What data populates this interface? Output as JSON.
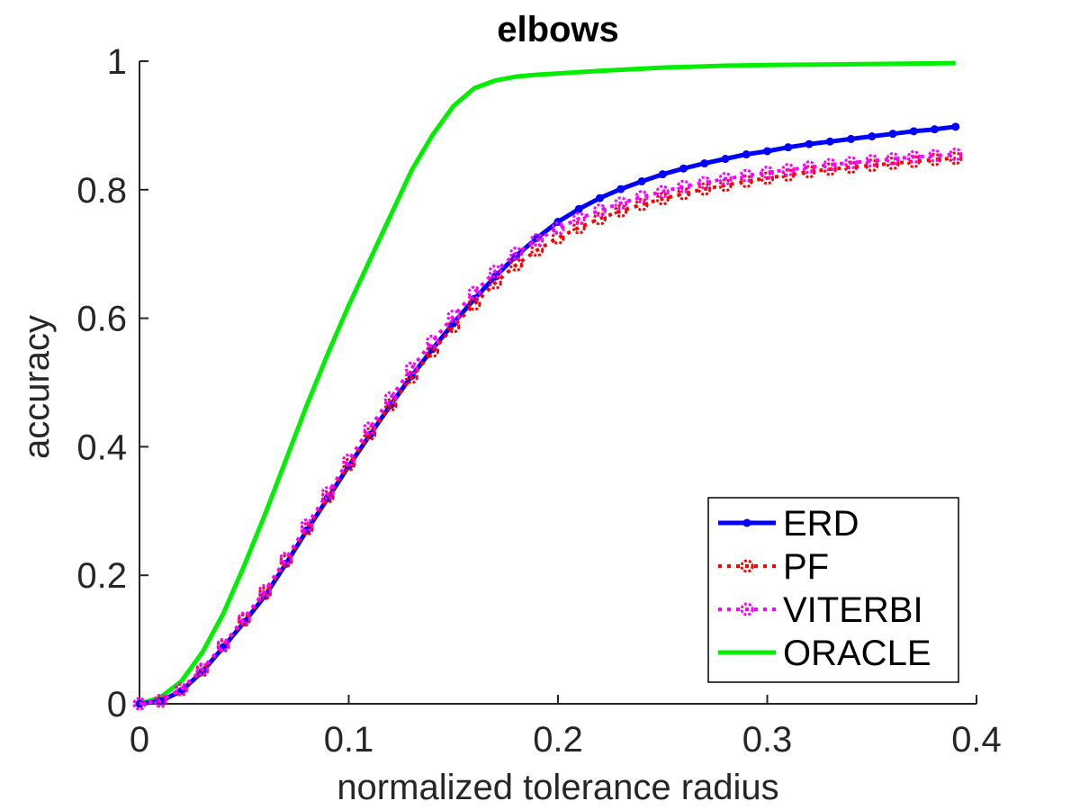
{
  "chart_data": {
    "type": "line",
    "title": "elbows",
    "xlabel": "normalized tolerance radius",
    "ylabel": "accuracy",
    "xlim": [
      0,
      0.4
    ],
    "ylim": [
      0,
      1
    ],
    "xticks": [
      0,
      0.1,
      0.2,
      0.3,
      0.4
    ],
    "xtick_labels": [
      "0",
      "0.1",
      "0.2",
      "0.3",
      "0.4"
    ],
    "yticks": [
      0,
      0.2,
      0.4,
      0.6,
      0.8,
      1
    ],
    "ytick_labels": [
      "0",
      "0.2",
      "0.4",
      "0.6",
      "0.8",
      "1"
    ],
    "grid": false,
    "legend_position": "bottom-right",
    "series": [
      {
        "name": "ERD",
        "color": "#0000ff",
        "line_style": "solid",
        "marker": "dot",
        "x": [
          0,
          0.01,
          0.02,
          0.03,
          0.04,
          0.05,
          0.06,
          0.07,
          0.08,
          0.09,
          0.1,
          0.11,
          0.12,
          0.13,
          0.14,
          0.15,
          0.16,
          0.17,
          0.18,
          0.19,
          0.2,
          0.21,
          0.22,
          0.23,
          0.24,
          0.25,
          0.26,
          0.27,
          0.28,
          0.29,
          0.3,
          0.31,
          0.32,
          0.33,
          0.34,
          0.35,
          0.36,
          0.37,
          0.38,
          0.39
        ],
        "y": [
          0,
          0.004,
          0.02,
          0.05,
          0.088,
          0.127,
          0.168,
          0.218,
          0.27,
          0.32,
          0.37,
          0.418,
          0.465,
          0.51,
          0.552,
          0.592,
          0.63,
          0.665,
          0.697,
          0.725,
          0.75,
          0.77,
          0.787,
          0.801,
          0.813,
          0.824,
          0.833,
          0.841,
          0.848,
          0.855,
          0.86,
          0.866,
          0.871,
          0.875,
          0.879,
          0.883,
          0.887,
          0.891,
          0.894,
          0.898
        ]
      },
      {
        "name": "PF",
        "color": "#ff0000",
        "line_style": "dotted",
        "marker": "circle",
        "x": [
          0,
          0.01,
          0.02,
          0.03,
          0.04,
          0.05,
          0.06,
          0.07,
          0.08,
          0.09,
          0.1,
          0.11,
          0.12,
          0.13,
          0.14,
          0.15,
          0.16,
          0.17,
          0.18,
          0.19,
          0.2,
          0.21,
          0.22,
          0.23,
          0.24,
          0.25,
          0.26,
          0.27,
          0.28,
          0.29,
          0.3,
          0.31,
          0.32,
          0.33,
          0.34,
          0.35,
          0.36,
          0.37,
          0.38,
          0.39
        ],
        "y": [
          0,
          0.004,
          0.022,
          0.052,
          0.09,
          0.13,
          0.172,
          0.222,
          0.272,
          0.322,
          0.372,
          0.42,
          0.465,
          0.508,
          0.549,
          0.587,
          0.622,
          0.655,
          0.683,
          0.706,
          0.725,
          0.741,
          0.755,
          0.767,
          0.777,
          0.786,
          0.794,
          0.801,
          0.807,
          0.813,
          0.818,
          0.823,
          0.828,
          0.832,
          0.835,
          0.838,
          0.841,
          0.844,
          0.847,
          0.849
        ]
      },
      {
        "name": "VITERBI",
        "color": "#ff00ff",
        "line_style": "dotted",
        "marker": "circle",
        "x": [
          0,
          0.01,
          0.02,
          0.03,
          0.04,
          0.05,
          0.06,
          0.07,
          0.08,
          0.09,
          0.1,
          0.11,
          0.12,
          0.13,
          0.14,
          0.15,
          0.16,
          0.17,
          0.18,
          0.19,
          0.2,
          0.21,
          0.22,
          0.23,
          0.24,
          0.25,
          0.26,
          0.27,
          0.28,
          0.29,
          0.3,
          0.31,
          0.32,
          0.33,
          0.34,
          0.35,
          0.36,
          0.37,
          0.38,
          0.39
        ],
        "y": [
          0,
          0.005,
          0.023,
          0.054,
          0.092,
          0.133,
          0.176,
          0.226,
          0.278,
          0.328,
          0.379,
          0.429,
          0.476,
          0.522,
          0.564,
          0.603,
          0.64,
          0.673,
          0.701,
          0.722,
          0.74,
          0.755,
          0.768,
          0.779,
          0.789,
          0.797,
          0.805,
          0.811,
          0.817,
          0.822,
          0.827,
          0.831,
          0.835,
          0.839,
          0.842,
          0.845,
          0.848,
          0.851,
          0.853,
          0.855
        ]
      },
      {
        "name": "ORACLE",
        "color": "#00ee00",
        "line_style": "solid",
        "marker": "none",
        "x": [
          0,
          0.01,
          0.02,
          0.03,
          0.04,
          0.05,
          0.06,
          0.07,
          0.08,
          0.09,
          0.1,
          0.11,
          0.12,
          0.13,
          0.14,
          0.15,
          0.16,
          0.17,
          0.18,
          0.19,
          0.2,
          0.22,
          0.25,
          0.28,
          0.3,
          0.33,
          0.36,
          0.39
        ],
        "y": [
          0,
          0.01,
          0.035,
          0.08,
          0.14,
          0.215,
          0.295,
          0.38,
          0.465,
          0.545,
          0.62,
          0.69,
          0.76,
          0.83,
          0.885,
          0.93,
          0.958,
          0.97,
          0.976,
          0.979,
          0.981,
          0.985,
          0.99,
          0.993,
          0.994,
          0.995,
          0.996,
          0.997
        ]
      }
    ]
  }
}
